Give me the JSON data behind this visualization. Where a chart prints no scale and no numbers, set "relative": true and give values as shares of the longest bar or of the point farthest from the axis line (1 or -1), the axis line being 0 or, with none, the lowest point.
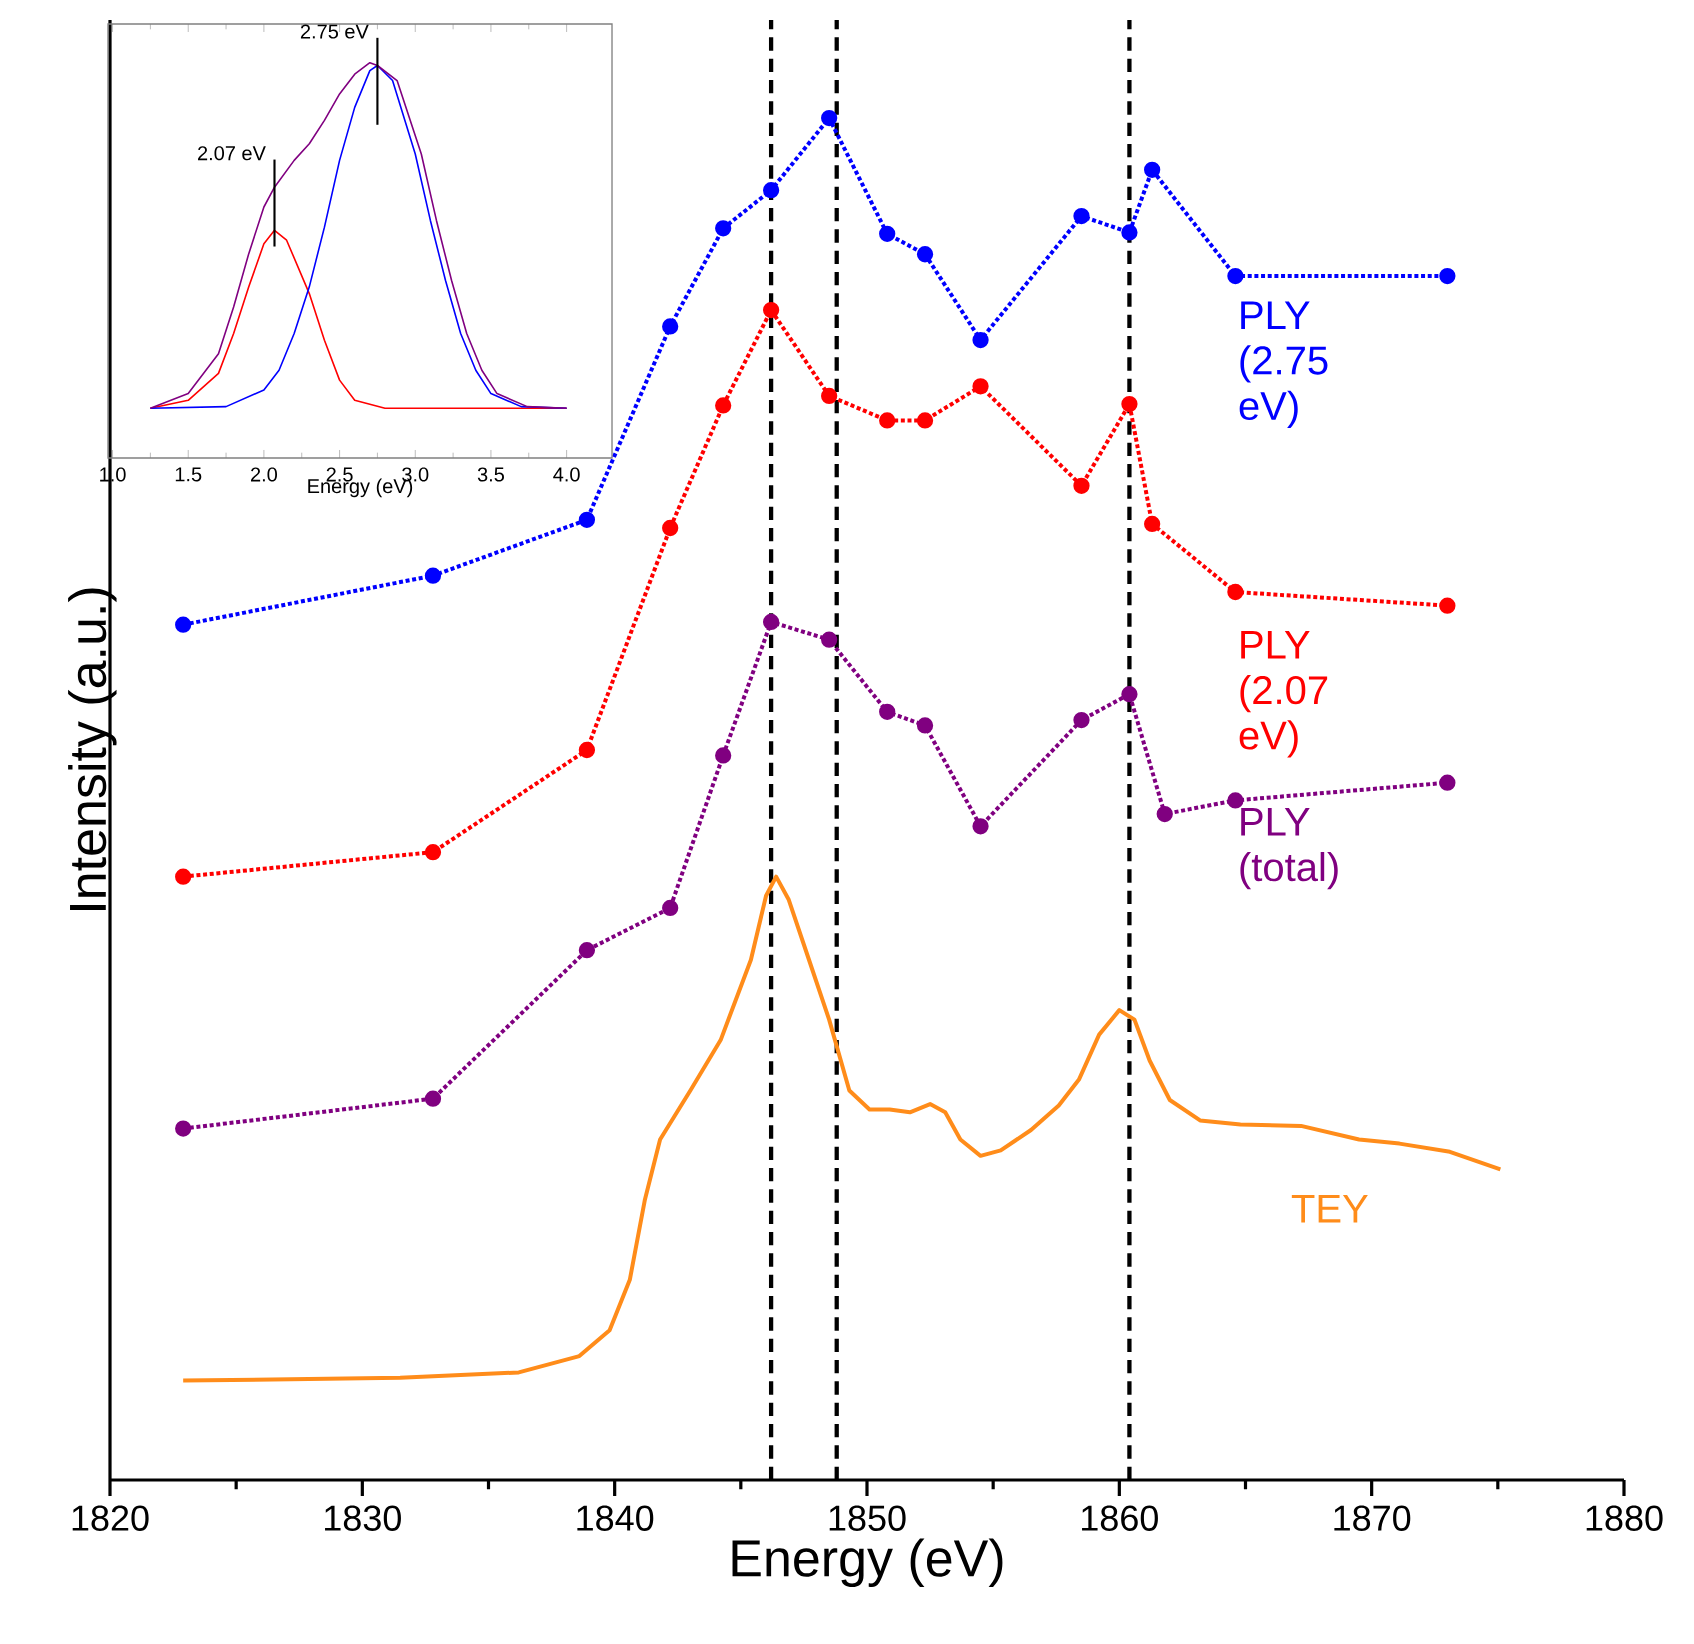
{
  "chart_data": [
    {
      "type": "line",
      "xlabel": "Energy (eV)",
      "ylabel": "Intensity (a.u.)",
      "relative": true,
      "xlim": [
        1820,
        1880
      ],
      "xticks": [
        1820,
        1830,
        1840,
        1850,
        1860,
        1870,
        1880
      ],
      "grid": false,
      "series": [
        {
          "name": "PLY (2.75 eV)",
          "color": "#0000ff",
          "marker": "circle",
          "line_style": "dotted",
          "x": [
            1822.9,
            1832.8,
            1838.9,
            1842.2,
            1844.3,
            1846.2,
            1848.5,
            1850.8,
            1852.3,
            1854.5,
            1858.5,
            1860.4,
            1861.3,
            1864.6,
            1873.0
          ],
          "values": [
            0.628,
            0.664,
            0.705,
            0.847,
            0.919,
            0.947,
            1.0,
            0.915,
            0.9,
            0.837,
            0.928,
            0.916,
            0.962,
            0.884,
            0.884
          ]
        },
        {
          "name": "PLY (2.07 eV)",
          "color": "#ff0000",
          "marker": "circle",
          "line_style": "dotted",
          "x": [
            1822.9,
            1832.8,
            1838.9,
            1842.2,
            1844.3,
            1846.2,
            1848.5,
            1850.8,
            1852.3,
            1854.5,
            1858.5,
            1860.4,
            1861.3,
            1864.6,
            1873.0
          ],
          "values": [
            0.443,
            0.461,
            0.536,
            0.699,
            0.789,
            0.859,
            0.796,
            0.778,
            0.778,
            0.803,
            0.73,
            0.79,
            0.702,
            0.652,
            0.642
          ]
        },
        {
          "name": "PLY (total)",
          "color": "#800080",
          "marker": "circle",
          "line_style": "dotted",
          "x": [
            1822.9,
            1832.8,
            1838.9,
            1842.2,
            1844.3,
            1846.2,
            1848.5,
            1850.8,
            1852.3,
            1854.5,
            1858.5,
            1860.4,
            1861.8,
            1864.6,
            1873.0
          ],
          "values": [
            0.258,
            0.28,
            0.389,
            0.42,
            0.532,
            0.63,
            0.617,
            0.564,
            0.554,
            0.48,
            0.558,
            0.577,
            0.489,
            0.499,
            0.512
          ]
        },
        {
          "name": "TEY",
          "color": "#ff8c1a",
          "marker": "none",
          "line_style": "solid",
          "x": [
            1822.9,
            1831.5,
            1836.2,
            1838.6,
            1839.8,
            1840.6,
            1841.2,
            1841.8,
            1843.0,
            1844.2,
            1845.4,
            1846.0,
            1846.4,
            1846.9,
            1847.7,
            1848.5,
            1849.3,
            1850.1,
            1850.9,
            1851.7,
            1852.5,
            1853.1,
            1853.7,
            1854.5,
            1855.3,
            1856.5,
            1857.6,
            1858.4,
            1859.2,
            1860.0,
            1860.6,
            1861.2,
            1862.0,
            1863.2,
            1864.8,
            1867.2,
            1869.5,
            1871.1,
            1873.1,
            1875.1
          ],
          "values": [
            0.073,
            0.075,
            0.079,
            0.091,
            0.11,
            0.147,
            0.206,
            0.25,
            0.286,
            0.323,
            0.382,
            0.429,
            0.443,
            0.426,
            0.382,
            0.338,
            0.286,
            0.272,
            0.272,
            0.27,
            0.276,
            0.27,
            0.25,
            0.238,
            0.242,
            0.257,
            0.275,
            0.294,
            0.327,
            0.345,
            0.338,
            0.308,
            0.279,
            0.264,
            0.261,
            0.26,
            0.25,
            0.247,
            0.241,
            0.228
          ]
        }
      ],
      "ref_lines": [
        {
          "axis": "x",
          "value": 1846.2,
          "color": "#000000",
          "line_style": "dashed"
        },
        {
          "axis": "x",
          "value": 1848.8,
          "color": "#000000",
          "line_style": "dashed"
        },
        {
          "axis": "x",
          "value": 1860.4,
          "color": "#000000",
          "line_style": "dashed"
        }
      ]
    },
    {
      "type": "line",
      "xlabel": "Energy (eV)",
      "relative": true,
      "xlim": [
        0.97,
        4.3
      ],
      "xticks": [
        {
          "value": 1.0,
          "label": "1.0"
        },
        {
          "value": 1.5,
          "label": "1.5"
        },
        {
          "value": 2.0,
          "label": "2.0"
        },
        {
          "value": 2.5,
          "label": "2.5"
        },
        {
          "value": 3.0,
          "label": "3.0"
        },
        {
          "value": 3.5,
          "label": "3.5"
        },
        {
          "value": 4.0,
          "label": "4.0"
        }
      ],
      "grid": false,
      "series": [
        {
          "color": "#ff0000",
          "x": [
            1.25,
            1.5,
            1.7,
            1.8,
            1.9,
            2.0,
            2.07,
            2.15,
            2.3,
            2.4,
            2.5,
            2.6,
            2.8,
            4.0
          ],
          "values": [
            0.126,
            0.146,
            0.214,
            0.315,
            0.433,
            0.542,
            0.576,
            0.551,
            0.416,
            0.298,
            0.197,
            0.146,
            0.126,
            0.126
          ]
        },
        {
          "color": "#0000ff",
          "x": [
            1.25,
            1.75,
            2.0,
            2.1,
            2.2,
            2.3,
            2.4,
            2.5,
            2.6,
            2.7,
            2.75,
            2.85,
            3.0,
            3.1,
            3.2,
            3.3,
            3.4,
            3.5,
            3.7,
            4.0
          ],
          "values": [
            0.126,
            0.13,
            0.172,
            0.222,
            0.315,
            0.433,
            0.584,
            0.753,
            0.887,
            0.98,
            0.993,
            0.955,
            0.769,
            0.601,
            0.449,
            0.315,
            0.222,
            0.163,
            0.13,
            0.126
          ]
        },
        {
          "color": "#800080",
          "x": [
            1.25,
            1.5,
            1.7,
            1.8,
            1.9,
            2.0,
            2.07,
            2.2,
            2.3,
            2.4,
            2.5,
            2.6,
            2.7,
            2.75,
            2.88,
            3.04,
            3.14,
            3.24,
            3.34,
            3.44,
            3.54,
            3.74,
            4.0
          ],
          "values": [
            0.126,
            0.163,
            0.264,
            0.382,
            0.517,
            0.635,
            0.685,
            0.753,
            0.795,
            0.854,
            0.921,
            0.971,
            1.0,
            0.993,
            0.955,
            0.769,
            0.601,
            0.449,
            0.315,
            0.222,
            0.163,
            0.13,
            0.126
          ]
        }
      ],
      "annotations": [
        {
          "text": "2.07 eV",
          "x": 2.07,
          "y": 0.685
        },
        {
          "text": "2.75 eV",
          "x": 2.75,
          "y": 0.993
        }
      ]
    }
  ]
}
